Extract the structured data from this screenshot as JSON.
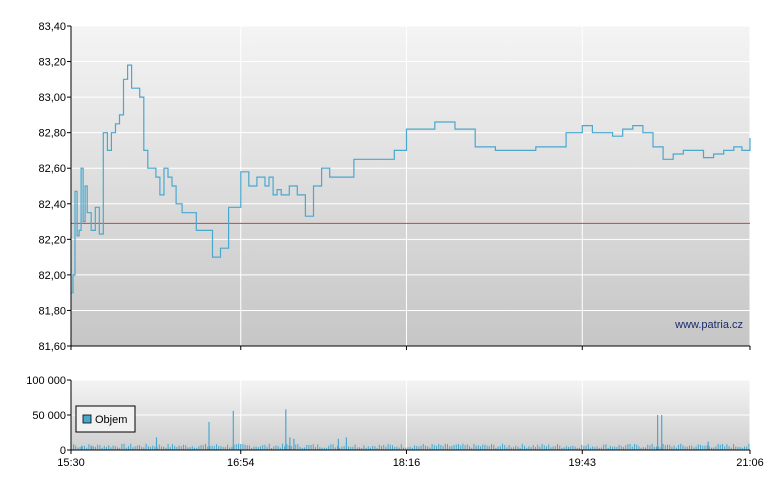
{
  "watermark": "www.patria.cz",
  "chart_data": [
    {
      "type": "line",
      "series": [
        {
          "x": [
            "15:30",
            "15:31",
            "15:32",
            "15:33",
            "15:34",
            "15:35",
            "15:36",
            "15:37",
            "15:38",
            "15:40",
            "15:42",
            "15:44",
            "15:46",
            "15:48",
            "15:50",
            "15:52",
            "15:54",
            "15:56",
            "15:58",
            "16:00",
            "16:02",
            "16:04",
            "16:06",
            "16:08",
            "16:10",
            "16:12",
            "16:14",
            "16:16",
            "16:18",
            "16:20",
            "16:22",
            "16:25",
            "16:28",
            "16:32",
            "16:36",
            "16:40",
            "16:44",
            "16:48",
            "16:52",
            "16:54",
            "16:58",
            "17:02",
            "17:06",
            "17:08",
            "17:10",
            "17:12",
            "17:14",
            "17:18",
            "17:22",
            "17:26",
            "17:30",
            "17:34",
            "17:38",
            "17:42",
            "17:46",
            "17:50",
            "17:54",
            "17:58",
            "18:04",
            "18:10",
            "18:16",
            "18:30",
            "18:40",
            "18:50",
            "19:00",
            "19:10",
            "19:20",
            "19:30",
            "19:35",
            "19:40",
            "19:43",
            "19:48",
            "19:53",
            "19:58",
            "20:03",
            "20:08",
            "20:13",
            "20:18",
            "20:23",
            "20:28",
            "20:33",
            "20:38",
            "20:43",
            "20:48",
            "20:53",
            "20:58",
            "21:02",
            "21:06"
          ],
          "values": [
            81.9,
            82.0,
            82.47,
            82.22,
            82.25,
            82.6,
            82.3,
            82.5,
            82.35,
            82.25,
            82.38,
            82.23,
            82.8,
            82.7,
            82.8,
            82.85,
            82.9,
            83.1,
            83.18,
            83.05,
            83.05,
            83.0,
            82.7,
            82.6,
            82.6,
            82.55,
            82.45,
            82.6,
            82.55,
            82.5,
            82.4,
            82.35,
            82.35,
            82.25,
            82.25,
            82.1,
            82.15,
            82.38,
            82.38,
            82.58,
            82.5,
            82.55,
            82.5,
            82.55,
            82.45,
            82.48,
            82.45,
            82.5,
            82.45,
            82.33,
            82.5,
            82.6,
            82.55,
            82.55,
            82.55,
            82.65,
            82.65,
            82.65,
            82.65,
            82.7,
            82.82,
            82.86,
            82.82,
            82.72,
            82.7,
            82.7,
            82.72,
            82.72,
            82.8,
            82.8,
            82.84,
            82.8,
            82.8,
            82.78,
            82.82,
            82.84,
            82.8,
            82.72,
            82.65,
            82.68,
            82.7,
            82.7,
            82.66,
            82.68,
            82.7,
            82.72,
            82.7,
            82.77
          ]
        }
      ],
      "reference_line": 82.29,
      "xlim": [
        "15:30",
        "21:06"
      ],
      "ylim": [
        81.6,
        83.4
      ],
      "y_ticks": [
        "81,60",
        "81,80",
        "82,00",
        "82,20",
        "82,40",
        "82,60",
        "82,80",
        "83,00",
        "83,20",
        "83,40"
      ],
      "x_ticks": [
        "15:30",
        "16:54",
        "18:16",
        "19:43",
        "21:06"
      ],
      "grid": true,
      "colors": {
        "line": "#4aa8cf",
        "reference": "#d04040",
        "bg_top": "#f4f4f4",
        "bg_bottom": "#c8c8c8"
      }
    },
    {
      "type": "bar",
      "legend": "Objem",
      "ylim": [
        0,
        100000
      ],
      "y_ticks": [
        "0",
        "50 000",
        "100 000"
      ],
      "x_ticks": [
        "15:30",
        "16:54",
        "18:16",
        "19:43",
        "21:06"
      ],
      "spikes": [
        {
          "time": "15:31",
          "value": 8000
        },
        {
          "time": "15:35",
          "value": 6000
        },
        {
          "time": "15:40",
          "value": 5000
        },
        {
          "time": "16:12",
          "value": 18000
        },
        {
          "time": "16:38",
          "value": 40000
        },
        {
          "time": "16:50",
          "value": 56000
        },
        {
          "time": "17:16",
          "value": 58000
        },
        {
          "time": "17:18",
          "value": 18000
        },
        {
          "time": "17:20",
          "value": 16000
        },
        {
          "time": "17:42",
          "value": 16000
        },
        {
          "time": "17:46",
          "value": 18000
        },
        {
          "time": "20:20",
          "value": 50000
        },
        {
          "time": "20:22",
          "value": 50000
        },
        {
          "time": "20:45",
          "value": 12000
        }
      ],
      "baseline_volume": 7000,
      "colors": {
        "bar": "#4aa8cf",
        "bg_top": "#f4f4f4",
        "bg_bottom": "#c8c8c8"
      }
    }
  ]
}
